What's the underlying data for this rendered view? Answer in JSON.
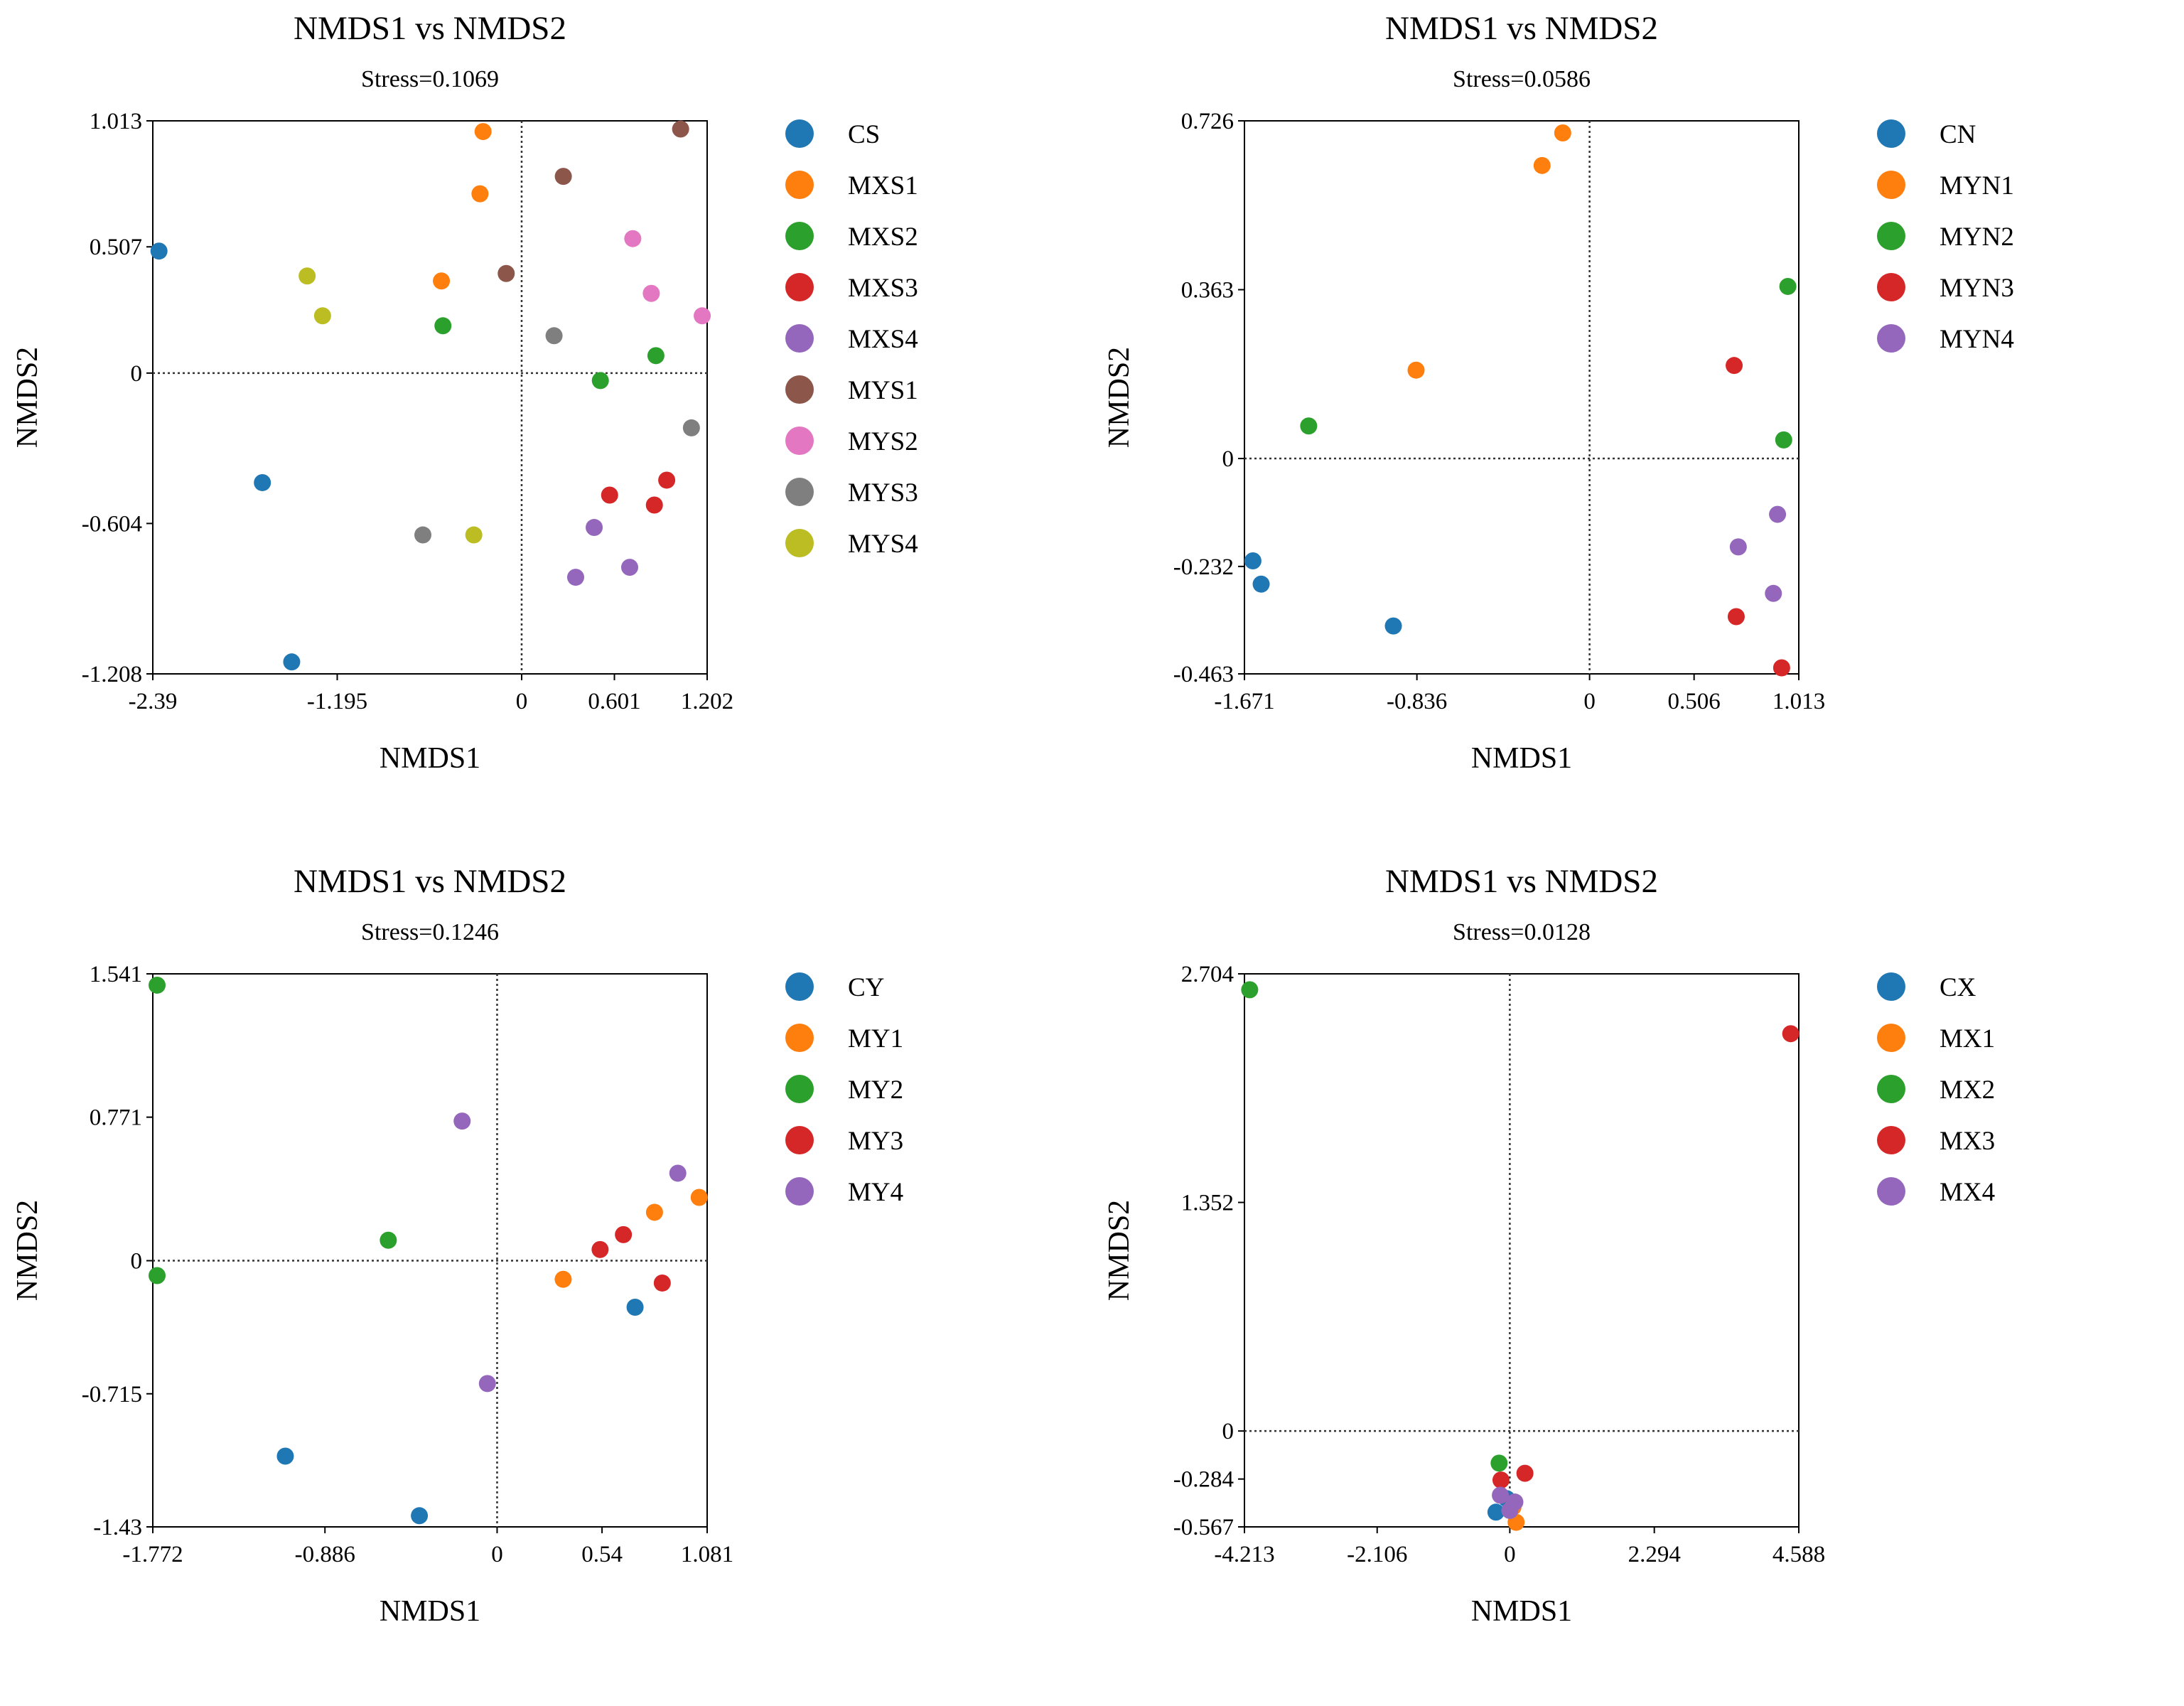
{
  "panels": [
    {
      "title": "NMDS1 vs NMDS2",
      "subtitle": "Stress=0.1069",
      "chart_data": {
        "type": "scatter",
        "title": "NMDS1 vs NMDS2",
        "subtitle": "Stress=0.1069",
        "xlabel": "NMDS1",
        "ylabel": "NMDS2",
        "xlim": [
          -2.39,
          1.202
        ],
        "ylim": [
          -1.208,
          1.013
        ],
        "x_ticks": [
          "-2.39",
          "-1.195",
          "0",
          "0.601",
          "1.202"
        ],
        "y_ticks": [
          "-1.208",
          "-0.604",
          "0",
          "0.507",
          "1.013"
        ],
        "reference_lines": {
          "x": 0,
          "y": 0
        },
        "legend_position": "right",
        "series": [
          {
            "name": "CS",
            "color": "#1f77b4",
            "points": [
              [
                -2.35,
                0.49
              ],
              [
                -1.68,
                -0.44
              ],
              [
                -1.49,
                -1.16
              ]
            ]
          },
          {
            "name": "MXS1",
            "color": "#ff7f0e",
            "points": [
              [
                -0.25,
                0.97
              ],
              [
                -0.27,
                0.72
              ],
              [
                -0.52,
                0.37
              ]
            ]
          },
          {
            "name": "MXS2",
            "color": "#2ca02c",
            "points": [
              [
                -0.51,
                0.19
              ],
              [
                0.51,
                -0.03
              ],
              [
                0.87,
                0.07
              ]
            ]
          },
          {
            "name": "MXS3",
            "color": "#d62728",
            "points": [
              [
                0.57,
                -0.49
              ],
              [
                0.94,
                -0.43
              ],
              [
                0.86,
                -0.53
              ]
            ]
          },
          {
            "name": "MXS4",
            "color": "#9467bd",
            "points": [
              [
                0.47,
                -0.62
              ],
              [
                0.35,
                -0.82
              ],
              [
                0.7,
                -0.78
              ]
            ]
          },
          {
            "name": "MYS1",
            "color": "#8c564b",
            "points": [
              [
                1.03,
                0.98
              ],
              [
                0.27,
                0.79
              ],
              [
                -0.1,
                0.4
              ]
            ]
          },
          {
            "name": "MYS2",
            "color": "#e377c2",
            "points": [
              [
                0.72,
                0.54
              ],
              [
                0.84,
                0.32
              ],
              [
                1.17,
                0.23
              ]
            ]
          },
          {
            "name": "MYS3",
            "color": "#7f7f7f",
            "points": [
              [
                0.21,
                0.15
              ],
              [
                1.1,
                -0.22
              ],
              [
                -0.64,
                -0.65
              ]
            ]
          },
          {
            "name": "MYS4",
            "color": "#bcbd22",
            "points": [
              [
                -1.39,
                0.39
              ],
              [
                -1.29,
                0.23
              ],
              [
                -0.31,
                -0.65
              ]
            ]
          }
        ]
      }
    },
    {
      "title": "NMDS1 vs NMDS2",
      "subtitle": "Stress=0.0586",
      "chart_data": {
        "type": "scatter",
        "title": "NMDS1 vs NMDS2",
        "subtitle": "Stress=0.0586",
        "xlabel": "NMDS1",
        "ylabel": "NMDS2",
        "xlim": [
          -1.671,
          1.013
        ],
        "ylim": [
          -0.463,
          0.726
        ],
        "x_ticks": [
          "-1.671",
          "-0.836",
          "0",
          "0.506",
          "1.013"
        ],
        "y_ticks": [
          "-0.463",
          "-0.232",
          "0",
          "0.363",
          "0.726"
        ],
        "reference_lines": {
          "x": 0,
          "y": 0
        },
        "legend_position": "right",
        "series": [
          {
            "name": "CN",
            "color": "#1f77b4",
            "points": [
              [
                -1.63,
                -0.22
              ],
              [
                -1.59,
                -0.27
              ],
              [
                -0.95,
                -0.36
              ]
            ]
          },
          {
            "name": "MYN1",
            "color": "#ff7f0e",
            "points": [
              [
                -0.13,
                0.7
              ],
              [
                -0.23,
                0.63
              ],
              [
                -0.84,
                0.19
              ]
            ]
          },
          {
            "name": "MYN2",
            "color": "#2ca02c",
            "points": [
              [
                -1.36,
                0.07
              ],
              [
                0.96,
                0.37
              ],
              [
                0.94,
                0.04
              ]
            ]
          },
          {
            "name": "MYN3",
            "color": "#d62728",
            "points": [
              [
                0.7,
                0.2
              ],
              [
                0.71,
                -0.34
              ],
              [
                0.93,
                -0.45
              ]
            ]
          },
          {
            "name": "MYN4",
            "color": "#9467bd",
            "points": [
              [
                0.91,
                -0.12
              ],
              [
                0.72,
                -0.19
              ],
              [
                0.89,
                -0.29
              ]
            ]
          }
        ]
      }
    },
    {
      "title": "NMDS1 vs NMDS2",
      "subtitle": "Stress=0.1246",
      "chart_data": {
        "type": "scatter",
        "title": "NMDS1 vs NMDS2",
        "subtitle": "Stress=0.1246",
        "xlabel": "NMDS1",
        "ylabel": "NMDS2",
        "xlim": [
          -1.772,
          1.081
        ],
        "ylim": [
          -1.43,
          1.541
        ],
        "x_ticks": [
          "-1.772",
          "-0.886",
          "0",
          "0.54",
          "1.081"
        ],
        "y_ticks": [
          "-1.43",
          "-0.715",
          "0",
          "0.771",
          "1.541"
        ],
        "reference_lines": {
          "x": 0,
          "y": 0
        },
        "legend_position": "right",
        "series": [
          {
            "name": "CY",
            "color": "#1f77b4",
            "points": [
              [
                -1.09,
                -1.05
              ],
              [
                -0.4,
                -1.37
              ],
              [
                0.71,
                -0.25
              ]
            ]
          },
          {
            "name": "MY1",
            "color": "#ff7f0e",
            "points": [
              [
                0.34,
                -0.1
              ],
              [
                0.81,
                0.26
              ],
              [
                1.04,
                0.34
              ]
            ]
          },
          {
            "name": "MY2",
            "color": "#2ca02c",
            "points": [
              [
                -1.75,
                1.48
              ],
              [
                -1.75,
                -0.08
              ],
              [
                -0.56,
                0.11
              ]
            ]
          },
          {
            "name": "MY3",
            "color": "#d62728",
            "points": [
              [
                0.53,
                0.06
              ],
              [
                0.65,
                0.14
              ],
              [
                0.85,
                -0.12
              ]
            ]
          },
          {
            "name": "MY4",
            "color": "#9467bd",
            "points": [
              [
                -0.18,
                0.75
              ],
              [
                -0.05,
                -0.66
              ],
              [
                0.93,
                0.47
              ]
            ]
          }
        ]
      }
    },
    {
      "title": "NMDS1 vs NMDS2",
      "subtitle": "Stress=0.0128",
      "chart_data": {
        "type": "scatter",
        "title": "NMDS1 vs NMDS2",
        "subtitle": "Stress=0.0128",
        "xlabel": "NMDS1",
        "ylabel": "NMDS2",
        "xlim": [
          -4.213,
          4.588
        ],
        "ylim": [
          -0.567,
          2.704
        ],
        "x_ticks": [
          "-4.213",
          "-2.106",
          "0",
          "2.294",
          "4.588"
        ],
        "y_ticks": [
          "-0.567",
          "-0.284",
          "0",
          "1.352",
          "2.704"
        ],
        "reference_lines": {
          "x": 0,
          "y": 0
        },
        "legend_position": "right",
        "series": [
          {
            "name": "CX",
            "color": "#1f77b4",
            "points": [
              [
                -0.22,
                -0.48
              ],
              [
                -0.05,
                -0.4
              ]
            ]
          },
          {
            "name": "MX1",
            "color": "#ff7f0e",
            "points": [
              [
                0.1,
                -0.54
              ],
              [
                0.05,
                -0.45
              ]
            ]
          },
          {
            "name": "MX2",
            "color": "#2ca02c",
            "points": [
              [
                -4.13,
                2.61
              ],
              [
                -0.17,
                -0.19
              ]
            ]
          },
          {
            "name": "MX3",
            "color": "#d62728",
            "points": [
              [
                4.46,
                2.35
              ],
              [
                0.24,
                -0.25
              ],
              [
                -0.14,
                -0.29
              ]
            ]
          },
          {
            "name": "MX4",
            "color": "#9467bd",
            "points": [
              [
                -0.15,
                -0.38
              ],
              [
                0.08,
                -0.42
              ],
              [
                0.0,
                -0.47
              ]
            ]
          }
        ]
      }
    }
  ]
}
